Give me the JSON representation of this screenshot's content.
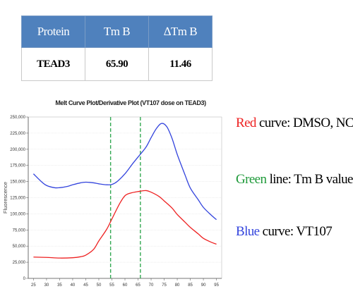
{
  "table": {
    "headers": [
      "Protein",
      "Tm B",
      "∆Tm B"
    ],
    "row": [
      "TEAD3",
      "65.90",
      "11.46"
    ]
  },
  "notes": {
    "red": {
      "colored": "Red",
      "rest": " curve: DMSO, NC",
      "color": "#ee2222"
    },
    "green": {
      "colored": "Green",
      "rest": " line: Tm B value",
      "color": "#1f9a3a"
    },
    "blue": {
      "colored": "Blue",
      "rest": " curve: VT107",
      "color": "#3344dd"
    }
  },
  "chart_data": {
    "type": "line",
    "title": "Melt Curve Plot/Derivative Plot (VT107 dose on TEAD3)",
    "ylabel": "Fluorescence",
    "xlabel": "",
    "xlim": [
      23,
      97
    ],
    "ylim": [
      0,
      250000
    ],
    "xticks": [
      25,
      30,
      35,
      40,
      45,
      50,
      55,
      60,
      65,
      70,
      75,
      80,
      85,
      90,
      95
    ],
    "yticks": [
      0,
      25000,
      50000,
      75000,
      100000,
      125000,
      150000,
      175000,
      200000,
      225000,
      250000
    ],
    "ytick_labels": [
      "0",
      "25,000",
      "50,000",
      "75,000",
      "100,000",
      "125,000",
      "150,000",
      "175,000",
      "200,000",
      "225,000",
      "250,000"
    ],
    "series": [
      {
        "color": "#3344dd",
        "x": [
          25,
          28,
          30,
          33,
          35,
          38,
          40,
          43,
          45,
          48,
          50,
          53,
          55,
          57,
          60,
          63,
          65,
          68,
          70,
          72,
          74,
          76,
          78,
          80,
          83,
          85,
          88,
          90,
          93,
          95
        ],
        "y": [
          162000,
          150000,
          144000,
          140500,
          140500,
          142500,
          145000,
          148000,
          149000,
          148000,
          146500,
          145000,
          145500,
          150000,
          162000,
          178000,
          188000,
          203000,
          218000,
          232000,
          240000,
          235000,
          217000,
          192000,
          160000,
          140000,
          122000,
          110000,
          98000,
          91000
        ]
      },
      {
        "color": "#ee2222",
        "x": [
          25,
          30,
          35,
          40,
          43,
          45,
          48,
          50,
          53,
          55,
          58,
          60,
          62,
          65,
          68,
          70,
          73,
          75,
          78,
          80,
          83,
          85,
          88,
          90,
          93,
          95
        ],
        "y": [
          33000,
          32500,
          31500,
          32000,
          33500,
          36000,
          45000,
          58000,
          76000,
          92000,
          116000,
          128000,
          132000,
          134500,
          136000,
          133500,
          127000,
          120000,
          109000,
          99000,
          87000,
          79000,
          69000,
          62000,
          56000,
          53000
        ]
      }
    ],
    "vlines": [
      {
        "x": 54.5,
        "color": "#33a852"
      },
      {
        "x": 65.9,
        "color": "#33a852"
      }
    ]
  }
}
